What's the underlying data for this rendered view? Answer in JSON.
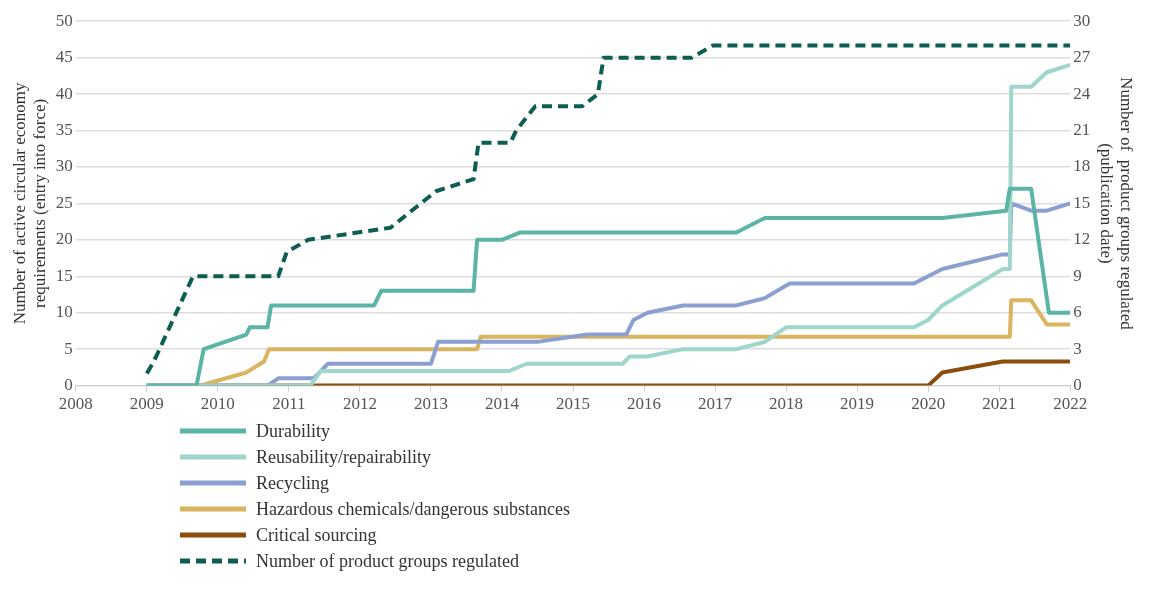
{
  "chart_data": {
    "type": "line",
    "ylabel": "Number of active circular economy requirements (entry into force)",
    "y2label": "Number of  product groups regulated (publication date)",
    "xlim": [
      2008,
      2022
    ],
    "xticks": [
      2008,
      2009,
      2010,
      2011,
      2012,
      2013,
      2014,
      2015,
      2016,
      2017,
      2018,
      2019,
      2020,
      2021,
      2022
    ],
    "ylim": [
      0,
      50
    ],
    "yticks": [
      0,
      5,
      10,
      15,
      20,
      25,
      30,
      35,
      40,
      45,
      50
    ],
    "y2lim": [
      0,
      30
    ],
    "y2ticks": [
      0,
      3,
      6,
      9,
      12,
      15,
      18,
      21,
      24,
      27,
      30
    ],
    "grid": "y",
    "legend": "bottom",
    "marker": "none",
    "series": [
      {
        "name": "Durability",
        "color": "#5ab5a5",
        "line_style": "solid",
        "x": [
          2009,
          2009.7,
          2009.8,
          2010.4,
          2010.45,
          2010.7,
          2010.75,
          2012.2,
          2012.3,
          2013.6,
          2013.65,
          2014.0,
          2014.25,
          2017.3,
          2017.7,
          2020.2,
          2021.1,
          2021.15,
          2021.45,
          2021.7,
          2022
        ],
        "values": [
          0,
          0,
          5,
          7,
          8,
          8,
          11,
          11,
          13,
          13,
          20,
          20,
          21,
          21,
          23,
          23,
          24,
          27,
          27,
          10,
          10
        ]
      },
      {
        "name": "Reusability/repairability",
        "color": "#9fd6cb",
        "line_style": "solid",
        "x": [
          2009,
          2011.3,
          2011.45,
          2014.1,
          2014.35,
          2015.7,
          2015.8,
          2016.05,
          2016.55,
          2017.3,
          2017.7,
          2018.0,
          2019.8,
          2020.0,
          2020.2,
          2021.05,
          2021.15,
          2021.17,
          2021.45,
          2021.67,
          2022
        ],
        "values": [
          0,
          0,
          2,
          2,
          3,
          3,
          4,
          4,
          5,
          5,
          6,
          8,
          8,
          9,
          11,
          16,
          16,
          41,
          41,
          43,
          44
        ]
      },
      {
        "name": "Recycling",
        "color": "#8b9fd1",
        "line_style": "solid",
        "x": [
          2009,
          2010.7,
          2010.85,
          2011.35,
          2011.55,
          2013.0,
          2013.1,
          2014.5,
          2015.2,
          2015.75,
          2015.85,
          2016.05,
          2016.55,
          2017.3,
          2017.7,
          2018.05,
          2019.8,
          2020.2,
          2021.05,
          2021.15,
          2021.17,
          2021.45,
          2021.67,
          2022
        ],
        "values": [
          0,
          0,
          1,
          1,
          3,
          3,
          6,
          6,
          7,
          7,
          9,
          10,
          11,
          11,
          12,
          14,
          14,
          16,
          18,
          18,
          25,
          24,
          24,
          25
        ]
      },
      {
        "name": "Hazardous chemicals/dangerous substances",
        "color": "#dcb35f",
        "line_style": "solid",
        "x": [
          2009,
          2009.75,
          2010.4,
          2010.65,
          2010.72,
          2013.65,
          2013.7,
          2021.15,
          2021.17,
          2021.45,
          2021.67,
          2022
        ],
        "values": [
          0,
          0,
          1.8,
          3.3,
          5,
          5,
          6.7,
          6.7,
          11.7,
          11.7,
          8.4,
          8.4
        ]
      },
      {
        "name": "Critical sourcing",
        "color": "#8b4c0f",
        "line_style": "solid",
        "x": [
          2009,
          2020.0,
          2020.2,
          2021.05,
          2022
        ],
        "values": [
          0,
          0,
          1.8,
          3.3,
          3.3
        ]
      },
      {
        "name": "Number of product groups regulated",
        "color": "#0d5e52",
        "line_style": "dashed",
        "axis": "y2",
        "x": [
          2009.0,
          2009.1,
          2009.65,
          2010.85,
          2010.97,
          2011.27,
          2012.43,
          2013.07,
          2013.6,
          2013.67,
          2014.12,
          2014.2,
          2014.47,
          2015.13,
          2015.35,
          2015.43,
          2016.67,
          2016.97,
          2022
        ],
        "values": [
          1,
          2,
          9,
          9,
          11,
          12,
          13,
          16,
          17,
          20,
          20,
          21,
          23,
          23,
          24,
          27,
          27,
          28,
          28
        ]
      }
    ]
  }
}
